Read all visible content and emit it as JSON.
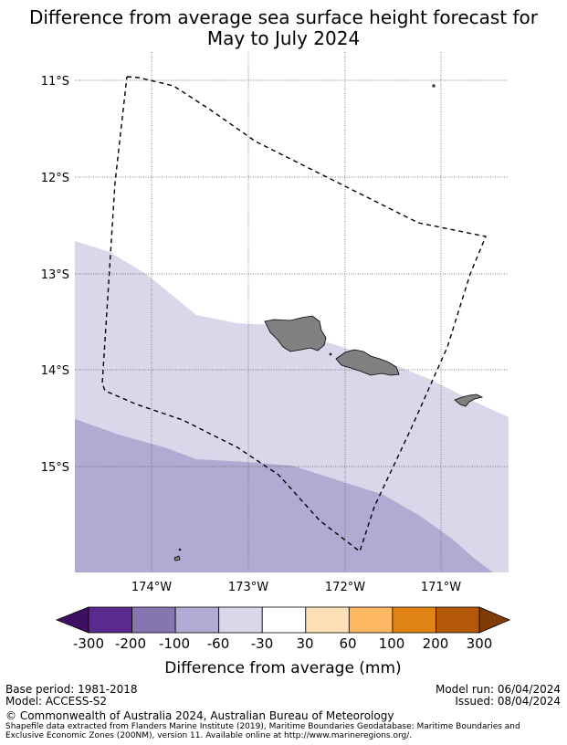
{
  "title": {
    "line1": "Difference from average sea surface height forecast for",
    "line2": "May to July 2024"
  },
  "map": {
    "lat_labels": [
      "11°S",
      "12°S",
      "13°S",
      "14°S",
      "15°S"
    ],
    "lon_labels": [
      "174°W",
      "173°W",
      "172°W",
      "171°W"
    ],
    "extent": {
      "lon_min": -174.8,
      "lon_max": -170.3,
      "lat_min": -16.1,
      "lat_max": -10.7
    },
    "colors": {
      "band_minus60_minus30": "#d8d8ea",
      "band_minus100_minus60": "#b1aad2",
      "land": "#808080",
      "boundary": "#000000"
    }
  },
  "colorbar": {
    "title": "Difference from average (mm)",
    "tick_labels": [
      "-300",
      "-200",
      "-100",
      "-60",
      "-30",
      "30",
      "60",
      "100",
      "200",
      "300"
    ],
    "under_color": "#3f0f63",
    "over_color": "#7f3b08",
    "colors": [
      "#5b2a8e",
      "#8575b0",
      "#b1aad2",
      "#d8d8ea",
      "#ffffff",
      "#fee0b6",
      "#fdb863",
      "#e08214",
      "#b35806"
    ]
  },
  "footer": {
    "base_period": "Base period: 1981-2018",
    "model": "Model: ACCESS-S2",
    "model_run": "Model run: 06/04/2024",
    "issued": "Issued: 08/04/2024",
    "copyright": "© Commonwealth of Australia 2024, Australian Bureau of Meteorology",
    "shapefile_line1": "Shapefile data extracted from Flanders Marine Institute (2019), Maritime Boundaries Geodatabase: Maritime Boundaries and",
    "shapefile_line2": "Exclusive Economic Zones (200NM), version 11. Available online at http://www.marineregions.org/."
  }
}
